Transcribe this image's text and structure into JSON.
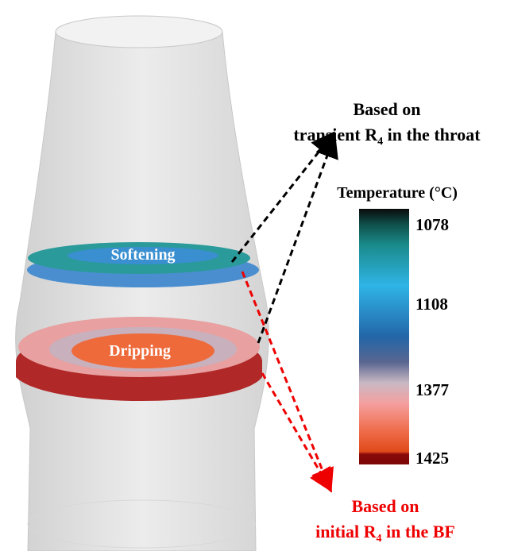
{
  "labels": {
    "softening": "Softening",
    "dripping": "Dripping"
  },
  "annotations": {
    "top": {
      "line1": "Based on",
      "line2": {
        "pre": "transient R",
        "sub": "4",
        "post": " in the throat"
      }
    },
    "bottom": {
      "line1": "Based on",
      "line2": {
        "pre": "initial R",
        "sub": "4",
        "post": " in the BF"
      }
    }
  },
  "colorbar": {
    "title": "Temperature (°C)",
    "labels": [
      "1078",
      "1108",
      "1377",
      "1425"
    ]
  }
}
